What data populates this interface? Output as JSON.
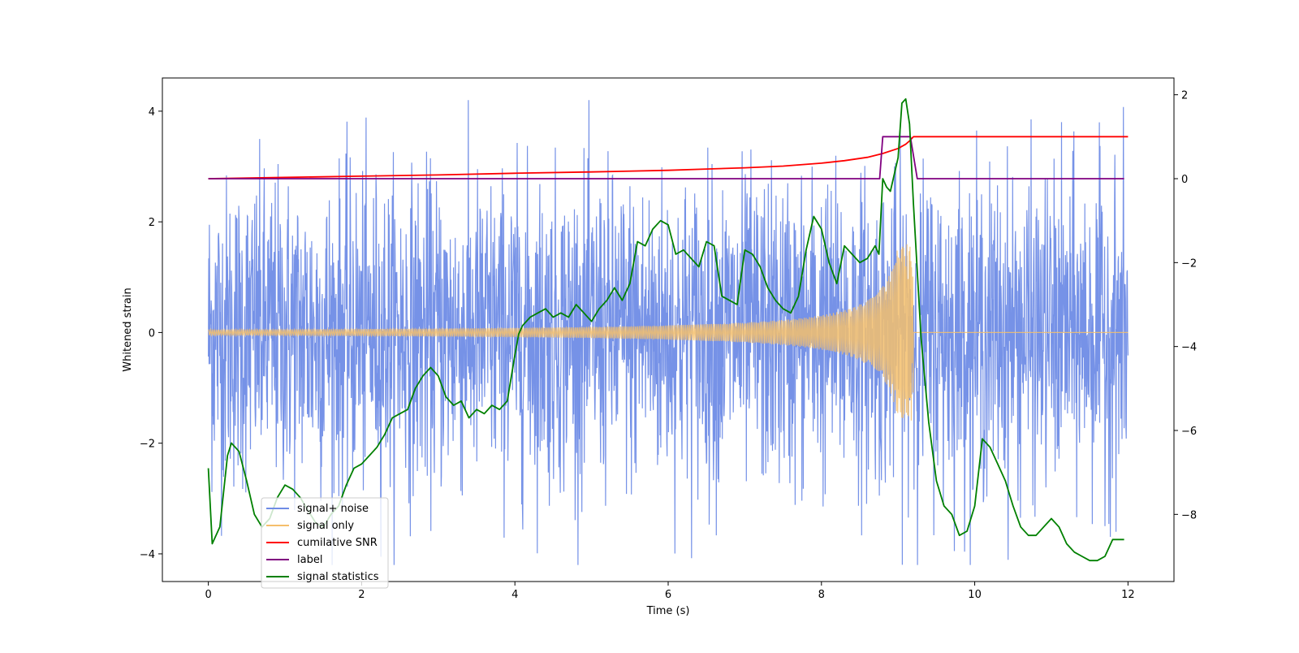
{
  "chart_data": {
    "type": "line",
    "xlabel": "Time (s)",
    "ylabel": "Whitened strain",
    "xlim": [
      -0.6,
      12.6
    ],
    "ylim": [
      -4.5,
      4.6
    ],
    "y2lim": [
      -9.6,
      2.4
    ],
    "xticks": [
      0,
      2,
      4,
      6,
      8,
      10,
      12
    ],
    "yticks": [
      -4,
      -2,
      0,
      2,
      4
    ],
    "y2ticks": [
      -8,
      -6,
      -4,
      -2,
      0,
      2
    ],
    "legend": {
      "location": "lower-left",
      "entries": [
        "signal+ noise",
        "signal only",
        "cumilative SNR",
        "label",
        "signal statistics"
      ]
    },
    "series": [
      {
        "name": "signal+ noise",
        "axis": "left",
        "color": "#6f8ce6",
        "kind": "noise",
        "t_range": [
          0,
          12
        ],
        "typical_amplitude": 1.4,
        "max_abs": 4.2
      },
      {
        "name": "signal only",
        "axis": "left",
        "color": "#f5bf6c",
        "kind": "chirp",
        "t_range": [
          0,
          12
        ],
        "merger_time": 9.2,
        "base_amplitude": 0.05,
        "peak_amplitude": 1.6
      },
      {
        "name": "cumilative SNR",
        "axis": "right",
        "color": "#ff0000",
        "x": [
          0,
          1,
          2,
          3,
          4,
          5,
          6,
          6.5,
          7,
          7.5,
          8,
          8.3,
          8.6,
          8.8,
          9.0,
          9.1,
          9.15,
          9.2,
          12
        ],
        "y": [
          0,
          0.03,
          0.06,
          0.09,
          0.13,
          0.16,
          0.2,
          0.23,
          0.26,
          0.3,
          0.37,
          0.43,
          0.51,
          0.6,
          0.72,
          0.82,
          0.9,
          1.0,
          1.0
        ]
      },
      {
        "name": "label",
        "axis": "right",
        "color": "#800080",
        "x": [
          0,
          8.76,
          8.8,
          9.16,
          9.25,
          11.95
        ],
        "y": [
          0,
          0,
          1,
          1,
          0,
          0
        ]
      },
      {
        "name": "signal statistics",
        "axis": "right",
        "color": "#008000",
        "x": [
          0,
          0.05,
          0.15,
          0.25,
          0.3,
          0.4,
          0.5,
          0.6,
          0.7,
          0.8,
          0.9,
          1.0,
          1.1,
          1.2,
          1.3,
          1.4,
          1.5,
          1.6,
          1.7,
          1.8,
          1.9,
          2.0,
          2.1,
          2.2,
          2.3,
          2.4,
          2.5,
          2.6,
          2.7,
          2.8,
          2.9,
          3.0,
          3.1,
          3.2,
          3.3,
          3.4,
          3.5,
          3.6,
          3.7,
          3.8,
          3.9,
          4.0,
          4.05,
          4.1,
          4.2,
          4.3,
          4.4,
          4.5,
          4.6,
          4.7,
          4.8,
          4.9,
          5.0,
          5.1,
          5.2,
          5.3,
          5.4,
          5.5,
          5.6,
          5.7,
          5.8,
          5.9,
          6.0,
          6.1,
          6.2,
          6.3,
          6.4,
          6.5,
          6.6,
          6.7,
          6.8,
          6.9,
          7.0,
          7.1,
          7.2,
          7.3,
          7.4,
          7.5,
          7.6,
          7.7,
          7.8,
          7.9,
          8.0,
          8.1,
          8.2,
          8.3,
          8.4,
          8.5,
          8.6,
          8.7,
          8.75,
          8.8,
          8.85,
          8.9,
          9.0,
          9.05,
          9.1,
          9.15,
          9.2,
          9.3,
          9.4,
          9.5,
          9.6,
          9.7,
          9.8,
          9.9,
          10.0,
          10.1,
          10.2,
          10.3,
          10.4,
          10.5,
          10.6,
          10.7,
          10.8,
          10.9,
          11.0,
          11.1,
          11.2,
          11.3,
          11.4,
          11.5,
          11.6,
          11.7,
          11.8,
          11.9,
          11.95
        ],
        "y": [
          -6.9,
          -8.7,
          -8.3,
          -6.6,
          -6.3,
          -6.5,
          -7.2,
          -8.0,
          -8.3,
          -8.1,
          -7.6,
          -7.3,
          -7.4,
          -7.6,
          -7.9,
          -8.2,
          -8.3,
          -8.0,
          -7.8,
          -7.3,
          -6.9,
          -6.8,
          -6.6,
          -6.4,
          -6.1,
          -5.7,
          -5.6,
          -5.5,
          -5.0,
          -4.7,
          -4.5,
          -4.7,
          -5.2,
          -5.4,
          -5.3,
          -5.7,
          -5.5,
          -5.6,
          -5.4,
          -5.5,
          -5.3,
          -4.2,
          -3.7,
          -3.5,
          -3.3,
          -3.2,
          -3.1,
          -3.3,
          -3.2,
          -3.3,
          -3.0,
          -3.2,
          -3.4,
          -3.1,
          -2.9,
          -2.6,
          -2.9,
          -2.5,
          -1.5,
          -1.6,
          -1.2,
          -1.0,
          -1.1,
          -1.8,
          -1.7,
          -1.9,
          -2.1,
          -1.5,
          -1.6,
          -2.8,
          -2.9,
          -3.0,
          -1.7,
          -1.8,
          -2.1,
          -2.6,
          -2.9,
          -3.1,
          -3.2,
          -2.8,
          -1.7,
          -0.9,
          -1.2,
          -2.0,
          -2.5,
          -1.6,
          -1.8,
          -2.0,
          -1.9,
          -1.6,
          -1.8,
          0.0,
          -0.2,
          -0.3,
          0.5,
          1.8,
          1.9,
          1.3,
          -0.6,
          -3.8,
          -5.8,
          -7.2,
          -7.8,
          -8.0,
          -8.5,
          -8.4,
          -7.8,
          -6.2,
          -6.4,
          -6.8,
          -7.2,
          -7.8,
          -8.3,
          -8.5,
          -8.5,
          -8.3,
          -8.1,
          -8.3,
          -8.7,
          -8.9,
          -9.0,
          -9.1,
          -9.1,
          -9.0,
          -8.6,
          -8.6,
          -8.6
        ]
      }
    ]
  }
}
